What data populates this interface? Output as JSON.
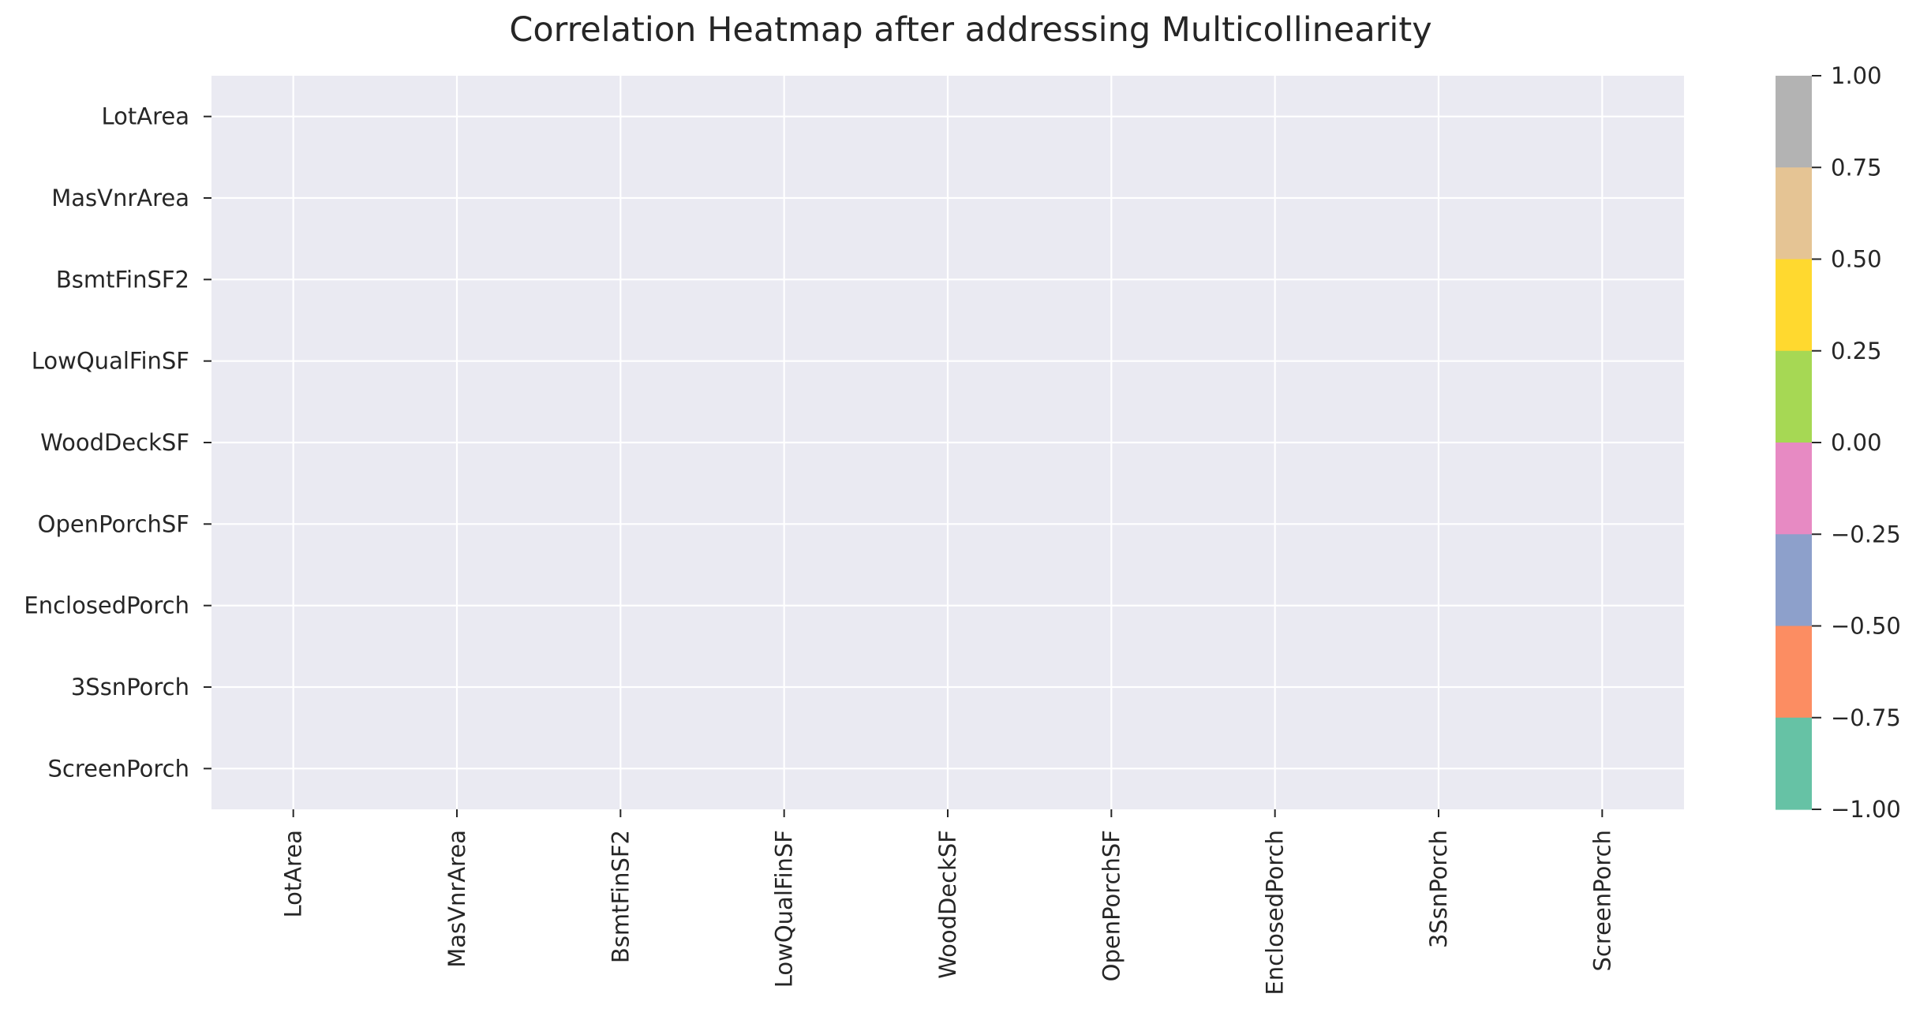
{
  "chart_data": {
    "type": "heatmap",
    "title": "Correlation Heatmap after addressing Multicollinearity",
    "x_categories": [
      "LotArea",
      "MasVnrArea",
      "BsmtFinSF2",
      "LowQualFinSF",
      "WoodDeckSF",
      "OpenPorchSF",
      "EnclosedPorch",
      "3SsnPorch",
      "ScreenPorch"
    ],
    "y_categories": [
      "LotArea",
      "MasVnrArea",
      "BsmtFinSF2",
      "LowQualFinSF",
      "WoodDeckSF",
      "OpenPorchSF",
      "EnclosedPorch",
      "3SsnPorch",
      "ScreenPorch"
    ],
    "values": [],
    "cells_rendered": false,
    "xlabel": "",
    "ylabel": "",
    "grid": true,
    "colorbar": {
      "min": -1.0,
      "max": 1.0,
      "tick_labels": [
        "1.00",
        "0.75",
        "0.50",
        "0.25",
        "0.00",
        "−0.25",
        "−0.50",
        "−0.75",
        "−1.00"
      ],
      "colors_top_to_bottom": [
        "#b3b3b3",
        "#e5c494",
        "#ffd92f",
        "#a6d854",
        "#e78ac3",
        "#8da0cb",
        "#fc8d62",
        "#66c2a5"
      ]
    },
    "plot_background": "#eaeaf2",
    "grid_color": "#ffffff",
    "text_color": "#262626"
  }
}
